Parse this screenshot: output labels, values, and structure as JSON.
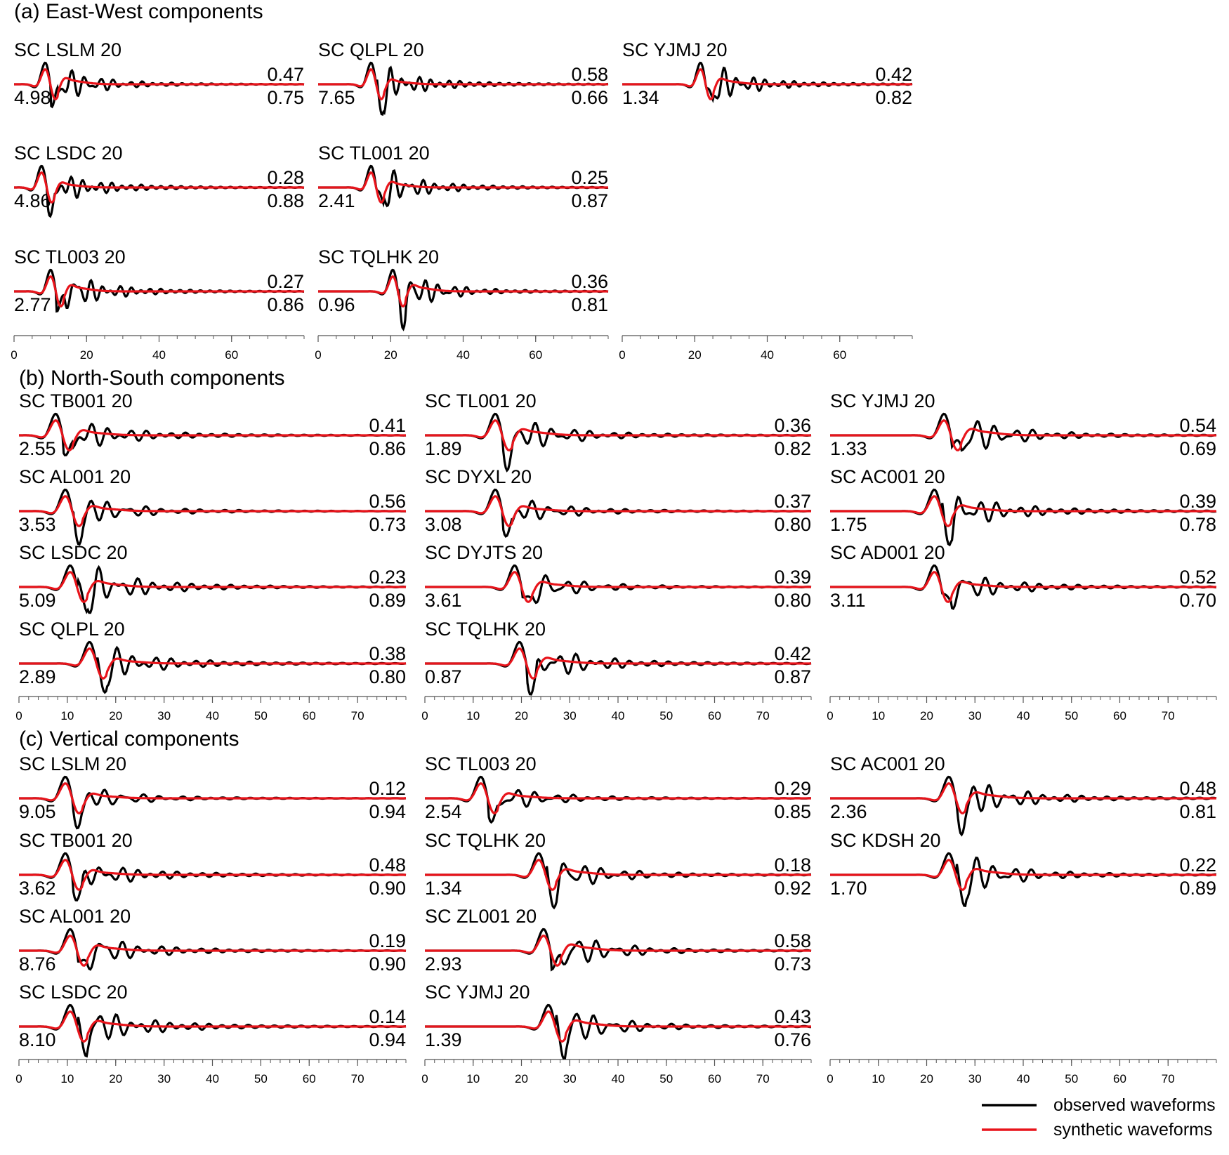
{
  "chart_data": {
    "type": "line",
    "series_names": [
      "observed waveforms",
      "synthetic waveforms"
    ],
    "colors": {
      "observed": "#000000",
      "synthetic": "#e8141b"
    },
    "legend": {
      "position": "bottom-right",
      "items": [
        {
          "label": "observed waveforms",
          "color": "#000000"
        },
        {
          "label": "synthetic waveforms",
          "color": "#e8141b"
        }
      ]
    },
    "sections": [
      {
        "title": "(a) East-West components",
        "xlim": [
          0,
          80
        ],
        "xticks": [
          "0",
          "20",
          "40",
          "60"
        ],
        "columns": [
          {
            "stations": [
              {
                "name": "SC LSLM 20",
                "top_value": "0.47",
                "amp": "4.98",
                "bottom_value": "0.75",
                "phase": 10.0
              },
              {
                "name": "SC LSDC 20",
                "top_value": "0.28",
                "amp": "4.86",
                "bottom_value": "0.88",
                "phase": 9.0
              },
              {
                "name": "SC TL003 20",
                "top_value": "0.27",
                "amp": "2.77",
                "bottom_value": "0.86",
                "phase": 11.5
              }
            ]
          },
          {
            "stations": [
              {
                "name": "SC QLPL 20",
                "top_value": "0.58",
                "amp": "7.65",
                "bottom_value": "0.66",
                "phase": 16.0
              },
              {
                "name": "SC TL001 20",
                "top_value": "0.25",
                "amp": "2.41",
                "bottom_value": "0.87",
                "phase": 16.0
              },
              {
                "name": "SC TQLHK 20",
                "top_value": "0.36",
                "amp": "0.96",
                "bottom_value": "0.81",
                "phase": 22.0
              }
            ]
          },
          {
            "stations": [
              {
                "name": "SC YJMJ 20",
                "top_value": "0.42",
                "amp": "1.34",
                "bottom_value": "0.82",
                "phase": 23.0
              }
            ]
          }
        ]
      },
      {
        "title": "(b) North-South components",
        "xlim": [
          0,
          80
        ],
        "xticks": [
          "0",
          "10",
          "20",
          "30",
          "40",
          "50",
          "60",
          "70"
        ],
        "columns": [
          {
            "stations": [
              {
                "name": "SC TB001 20",
                "top_value": "0.41",
                "amp": "2.55",
                "bottom_value": "0.86",
                "phase": 9.0
              },
              {
                "name": "SC AL001 20",
                "top_value": "0.56",
                "amp": "3.53",
                "bottom_value": "0.73",
                "phase": 11.0
              },
              {
                "name": "SC LSDC 20",
                "top_value": "0.23",
                "amp": "5.09",
                "bottom_value": "0.89",
                "phase": 12.0
              },
              {
                "name": "SC QLPL 20",
                "top_value": "0.38",
                "amp": "2.89",
                "bottom_value": "0.80",
                "phase": 16.0
              }
            ]
          },
          {
            "stations": [
              {
                "name": "SC TL001 20",
                "top_value": "0.36",
                "amp": "1.89",
                "bottom_value": "0.82",
                "phase": 16.0
              },
              {
                "name": "SC DYXL 20",
                "top_value": "0.37",
                "amp": "3.08",
                "bottom_value": "0.80",
                "phase": 16.0
              },
              {
                "name": "SC DYJTS 20",
                "top_value": "0.39",
                "amp": "3.61",
                "bottom_value": "0.80",
                "phase": 20.0
              },
              {
                "name": "SC TQLHK 20",
                "top_value": "0.42",
                "amp": "0.87",
                "bottom_value": "0.87",
                "phase": 21.0
              }
            ]
          },
          {
            "stations": [
              {
                "name": "SC YJMJ 20",
                "top_value": "0.54",
                "amp": "1.33",
                "bottom_value": "0.69",
                "phase": 25.0
              },
              {
                "name": "SC AC001 20",
                "top_value": "0.39",
                "amp": "1.75",
                "bottom_value": "0.78",
                "phase": 23.0
              },
              {
                "name": "SC AD001 20",
                "top_value": "0.52",
                "amp": "3.11",
                "bottom_value": "0.70",
                "phase": 23.0
              }
            ]
          }
        ]
      },
      {
        "title": "(c) Vertical components",
        "xlim": [
          0,
          80
        ],
        "xticks": [
          "0",
          "10",
          "20",
          "30",
          "40",
          "50",
          "60",
          "70"
        ],
        "columns": [
          {
            "stations": [
              {
                "name": "SC LSLM 20",
                "top_value": "0.12",
                "amp": "9.05",
                "bottom_value": "0.94",
                "phase": 11.0
              },
              {
                "name": "SC TB001 20",
                "top_value": "0.48",
                "amp": "3.62",
                "bottom_value": "0.90",
                "phase": 11.0
              },
              {
                "name": "SC AL001 20",
                "top_value": "0.19",
                "amp": "8.76",
                "bottom_value": "0.90",
                "phase": 12.0
              },
              {
                "name": "SC LSDC 20",
                "top_value": "0.14",
                "amp": "8.10",
                "bottom_value": "0.94",
                "phase": 12.0
              }
            ]
          },
          {
            "stations": [
              {
                "name": "SC TL003 20",
                "top_value": "0.29",
                "amp": "2.54",
                "bottom_value": "0.85",
                "phase": 13.0
              },
              {
                "name": "SC TQLHK 20",
                "top_value": "0.18",
                "amp": "1.34",
                "bottom_value": "0.92",
                "phase": 25.0
              },
              {
                "name": "SC ZL001 20",
                "top_value": "0.58",
                "amp": "2.93",
                "bottom_value": "0.73",
                "phase": 26.0
              },
              {
                "name": "SC YJMJ 20",
                "top_value": "0.43",
                "amp": "1.39",
                "bottom_value": "0.76",
                "phase": 27.0
              }
            ]
          },
          {
            "stations": [
              {
                "name": "SC AC001 20",
                "top_value": "0.48",
                "amp": "2.36",
                "bottom_value": "0.81",
                "phase": 26.0
              },
              {
                "name": "SC KDSH 20",
                "top_value": "0.22",
                "amp": "1.70",
                "bottom_value": "0.89",
                "phase": 26.0
              }
            ]
          }
        ]
      }
    ]
  }
}
